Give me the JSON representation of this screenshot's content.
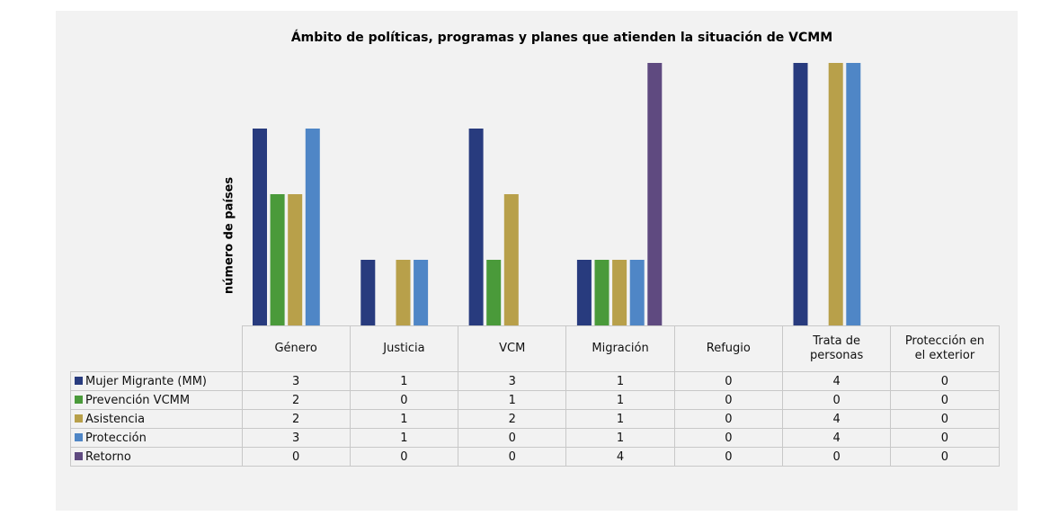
{
  "chart_data": {
    "type": "bar",
    "title": "Ámbito de políticas, programas y planes que atienden la situación de VCMM",
    "y_label": "número de países",
    "categories": [
      "Género",
      "Justicia",
      "VCM",
      "Migración",
      "Refugio",
      "Trata de personas",
      "Protección en el exterior"
    ],
    "series": [
      {
        "name": "Mujer Migrante (MM)",
        "color": "#283b7e",
        "values": [
          3,
          1,
          3,
          1,
          0,
          4,
          0
        ]
      },
      {
        "name": "Prevención VCMM",
        "color": "#4a9a3a",
        "values": [
          2,
          0,
          1,
          1,
          0,
          0,
          0
        ]
      },
      {
        "name": "Asistencia",
        "color": "#b8a04a",
        "values": [
          2,
          1,
          2,
          1,
          0,
          4,
          0
        ]
      },
      {
        "name": "Protección",
        "color": "#4f86c6",
        "values": [
          3,
          1,
          0,
          1,
          0,
          4,
          0
        ]
      },
      {
        "name": "Retorno",
        "color": "#5f4a80",
        "values": [
          0,
          0,
          0,
          4,
          0,
          0,
          0
        ]
      }
    ],
    "ylim": [
      0,
      4
    ]
  }
}
